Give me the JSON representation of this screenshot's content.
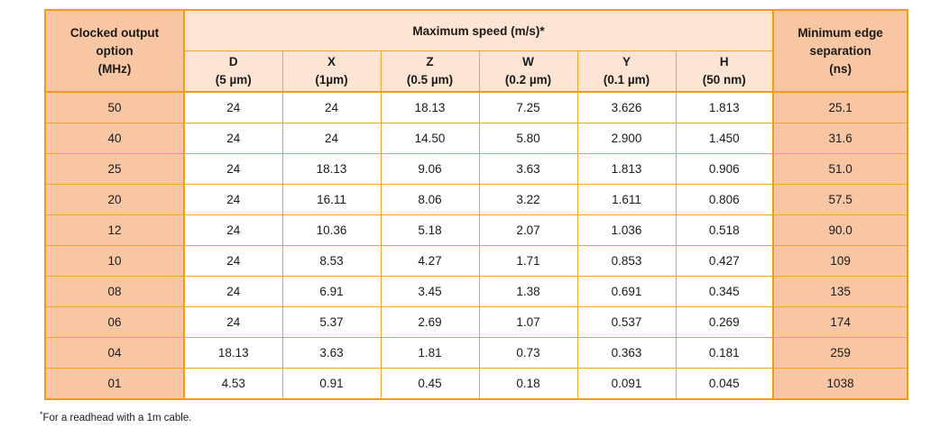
{
  "table": {
    "col_output_header": [
      "Clocked output",
      "option",
      "(MHz)"
    ],
    "col_speed_header": "Maximum speed (m/s)*",
    "col_edge_header": [
      "Minimum edge",
      "separation",
      "(ns)"
    ],
    "resolutions": [
      {
        "letter": "D",
        "value": "(5 µm)"
      },
      {
        "letter": "X",
        "value": "(1µm)"
      },
      {
        "letter": "Z",
        "value": "(0.5 µm)"
      },
      {
        "letter": "W",
        "value": "(0.2 µm)"
      },
      {
        "letter": "Y",
        "value": "(0.1 µm)"
      },
      {
        "letter": "H",
        "value": "(50 nm)"
      }
    ],
    "rows": [
      {
        "option": "50",
        "speeds": [
          "24",
          "24",
          "18.13",
          "7.25",
          "3.626",
          "1.813"
        ],
        "edge": "25.1"
      },
      {
        "option": "40",
        "speeds": [
          "24",
          "24",
          "14.50",
          "5.80",
          "2.900",
          "1.450"
        ],
        "edge": "31.6"
      },
      {
        "option": "25",
        "speeds": [
          "24",
          "18.13",
          "9.06",
          "3.63",
          "1.813",
          "0.906"
        ],
        "edge": "51.0"
      },
      {
        "option": "20",
        "speeds": [
          "24",
          "16.11",
          "8.06",
          "3.22",
          "1.611",
          "0.806"
        ],
        "edge": "57.5"
      },
      {
        "option": "12",
        "speeds": [
          "24",
          "10.36",
          "5.18",
          "2.07",
          "1.036",
          "0.518"
        ],
        "edge": "90.0"
      },
      {
        "option": "10",
        "speeds": [
          "24",
          "8.53",
          "4.27",
          "1.71",
          "0.853",
          "0.427"
        ],
        "edge": "109"
      },
      {
        "option": "08",
        "speeds": [
          "24",
          "6.91",
          "3.45",
          "1.38",
          "0.691",
          "0.345"
        ],
        "edge": "135"
      },
      {
        "option": "06",
        "speeds": [
          "24",
          "5.37",
          "2.69",
          "1.07",
          "0.537",
          "0.269"
        ],
        "edge": "174"
      },
      {
        "option": "04",
        "speeds": [
          "18.13",
          "3.63",
          "1.81",
          "0.73",
          "0.363",
          "0.181"
        ],
        "edge": "259"
      },
      {
        "option": "01",
        "speeds": [
          "4.53",
          "0.91",
          "0.45",
          "0.18",
          "0.091",
          "0.045"
        ],
        "edge": "1038"
      }
    ]
  },
  "footnote": {
    "marker": "*",
    "text": "For a readhead with a 1m cable."
  },
  "colors": {
    "border": "#f29a1c",
    "side_fill": "#f9c6a4",
    "header_fill": "#fde4d3"
  }
}
